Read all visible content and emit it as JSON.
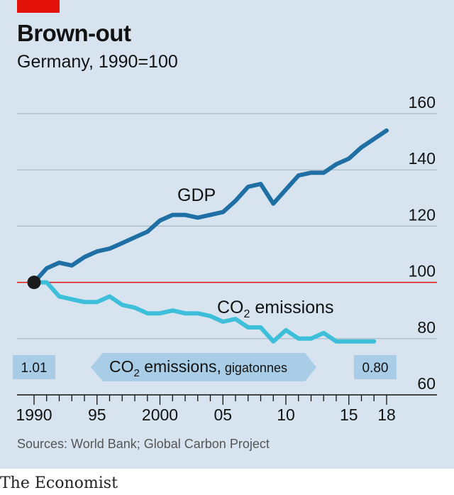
{
  "header": {
    "title": "Brown-out",
    "subtitle": "Germany, 1990=100"
  },
  "footer": {
    "source": "Sources: World Bank; Global Carbon Project",
    "brand": "The Economist"
  },
  "colors": {
    "panel_background": "#d7e4ef",
    "gdp_line": "#1f6fa4",
    "co2_line": "#3ebfd9",
    "baseline": "#e3120b",
    "accent_tag": "#e3120b",
    "label_box": "#a9cde6"
  },
  "chart_data": {
    "type": "line",
    "title": "Brown-out",
    "subtitle": "Germany, 1990=100",
    "xlabel": "",
    "ylabel": "",
    "xlim": [
      1989.5,
      2018.5
    ],
    "ylim": [
      60,
      160
    ],
    "y_ticks": [
      60,
      80,
      100,
      120,
      140,
      160
    ],
    "x_tick_labels": [
      {
        "x": 1990,
        "label": "1990"
      },
      {
        "x": 1995,
        "label": "95"
      },
      {
        "x": 2000,
        "label": "2000"
      },
      {
        "x": 2005,
        "label": "05"
      },
      {
        "x": 2010,
        "label": "10"
      },
      {
        "x": 2015,
        "label": "15"
      },
      {
        "x": 2018,
        "label": "18"
      }
    ],
    "baseline": 100,
    "grid": true,
    "series": [
      {
        "name": "GDP",
        "x": [
          1990,
          1991,
          1992,
          1993,
          1994,
          1995,
          1996,
          1997,
          1998,
          1999,
          2000,
          2001,
          2002,
          2003,
          2004,
          2005,
          2006,
          2007,
          2008,
          2009,
          2010,
          2011,
          2012,
          2013,
          2014,
          2015,
          2016,
          2017,
          2018
        ],
        "values": [
          100,
          105,
          107,
          106,
          109,
          111,
          112,
          114,
          116,
          118,
          122,
          124,
          124,
          123,
          124,
          125,
          129,
          134,
          135,
          128,
          133,
          138,
          139,
          139,
          142,
          144,
          148,
          151,
          154
        ]
      },
      {
        "name": "CO2 emissions",
        "label_main": "CO",
        "label_sub": "2",
        "label_rest": " emissions",
        "x": [
          1990,
          1991,
          1992,
          1993,
          1994,
          1995,
          1996,
          1997,
          1998,
          1999,
          2000,
          2001,
          2002,
          2003,
          2004,
          2005,
          2006,
          2007,
          2008,
          2009,
          2010,
          2011,
          2012,
          2013,
          2014,
          2015,
          2016,
          2017
        ],
        "values": [
          100,
          100,
          95,
          94,
          93,
          93,
          95,
          92,
          91,
          89,
          89,
          90,
          89,
          89,
          88,
          86,
          87,
          84,
          84,
          79,
          83,
          80,
          80,
          82,
          79,
          79,
          79,
          79
        ]
      }
    ],
    "annotations": {
      "start_value": "1.01",
      "end_value": "0.80",
      "arrow_label_main": "CO",
      "arrow_label_sub": "2",
      "arrow_label_rest": " emissions,",
      "arrow_label_unit": " gigatonnes"
    }
  }
}
